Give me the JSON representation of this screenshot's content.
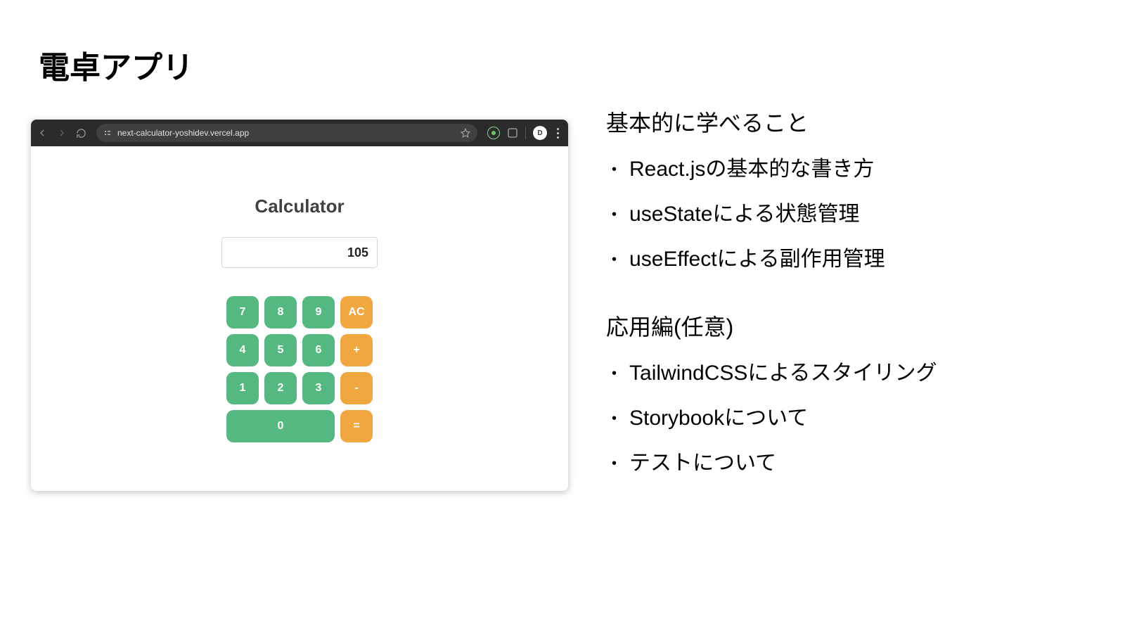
{
  "slide": {
    "title": "電卓アプリ"
  },
  "browser": {
    "url": "next-calculator-yoshidev.vercel.app",
    "avatar_initial": "D"
  },
  "calculator": {
    "title": "Calculator",
    "display_value": "105",
    "colors": {
      "number_key": "#55b881",
      "operator_key": "#f0a73f",
      "display_border": "#d8d8d8",
      "title_text": "#414141"
    },
    "keys": [
      {
        "label": "7",
        "type": "num"
      },
      {
        "label": "8",
        "type": "num"
      },
      {
        "label": "9",
        "type": "num"
      },
      {
        "label": "AC",
        "type": "op"
      },
      {
        "label": "4",
        "type": "num"
      },
      {
        "label": "5",
        "type": "num"
      },
      {
        "label": "6",
        "type": "num"
      },
      {
        "label": "+",
        "type": "op"
      },
      {
        "label": "1",
        "type": "num"
      },
      {
        "label": "2",
        "type": "num"
      },
      {
        "label": "3",
        "type": "num"
      },
      {
        "label": "-",
        "type": "op"
      },
      {
        "label": "0",
        "type": "num",
        "span": 3
      },
      {
        "label": "=",
        "type": "op"
      }
    ]
  },
  "content": {
    "section1": {
      "heading": "基本的に学べること",
      "items": [
        "React.jsの基本的な書き方",
        "useStateによる状態管理",
        "useEffectによる副作用管理"
      ]
    },
    "section2": {
      "heading": "応用編(任意)",
      "items": [
        "TailwindCSSによるスタイリング",
        "Storybookについて",
        "テストについて"
      ]
    }
  }
}
